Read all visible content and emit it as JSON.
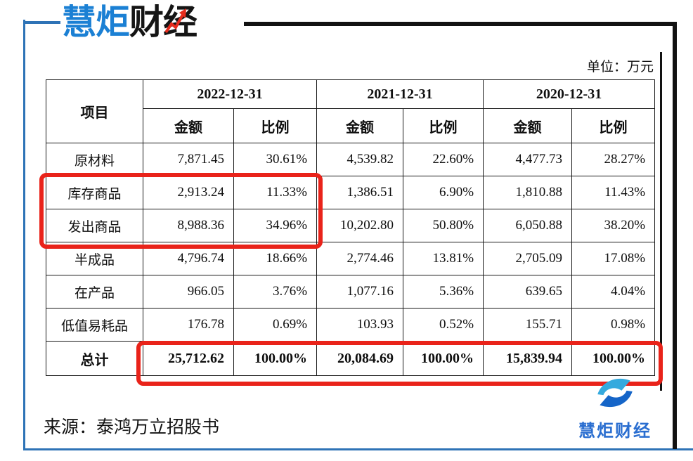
{
  "header": {
    "brand_blue_part": "慧炬",
    "brand_dark_part": "财经",
    "unit_label": "单位：万元"
  },
  "table": {
    "item_header": "项目",
    "col_groups": [
      {
        "date": "2022-12-31"
      },
      {
        "date": "2021-12-31"
      },
      {
        "date": "2020-12-31"
      }
    ],
    "sub_headers": [
      "金额",
      "比例"
    ],
    "rows": [
      {
        "item": "原材料",
        "values": [
          "7,871.45",
          "30.61%",
          "4,539.82",
          "22.60%",
          "4,477.73",
          "28.27%"
        ]
      },
      {
        "item": "库存商品",
        "values": [
          "2,913.24",
          "11.33%",
          "1,386.51",
          "6.90%",
          "1,810.88",
          "11.43%"
        ]
      },
      {
        "item": "发出商品",
        "values": [
          "8,988.36",
          "34.96%",
          "10,202.80",
          "50.80%",
          "6,050.88",
          "38.20%"
        ]
      },
      {
        "item": "半成品",
        "values": [
          "4,796.74",
          "18.66%",
          "2,774.46",
          "13.81%",
          "2,705.09",
          "17.08%"
        ]
      },
      {
        "item": "在产品",
        "values": [
          "966.05",
          "3.76%",
          "1,077.16",
          "5.36%",
          "639.65",
          "4.04%"
        ]
      },
      {
        "item": "低值易耗品",
        "values": [
          "176.78",
          "0.69%",
          "103.93",
          "0.52%",
          "155.71",
          "0.98%"
        ]
      }
    ],
    "total_row": {
      "item": "总计",
      "values": [
        "25,712.62",
        "100.00%",
        "20,084.69",
        "100.00%",
        "15,839.94",
        "100.00%"
      ]
    }
  },
  "footer": {
    "source": "来源：泰鸿万立招股书",
    "watermark_text": "慧炬财经"
  },
  "colors": {
    "accent_red": "#e9231a",
    "brand_blue": "#1b80d4",
    "frame_blue": "#2e73b6",
    "watermark_blue": "#2a6ed0",
    "ink": "#141414"
  }
}
